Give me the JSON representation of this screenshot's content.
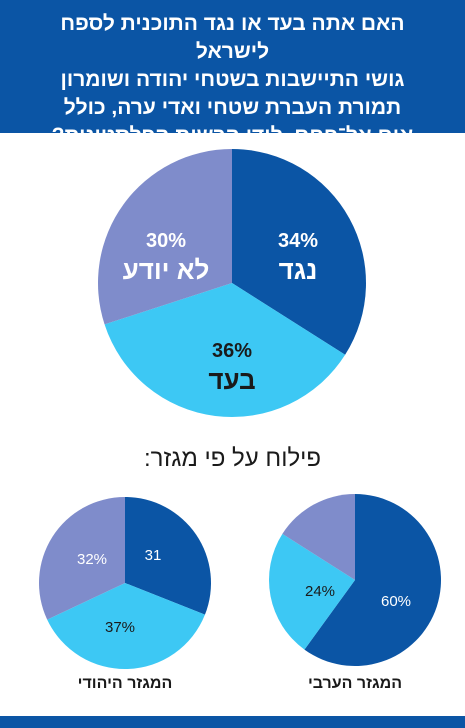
{
  "header": {
    "lines": [
      "האם אתה בעד או נגד התוכנית לספח לישראל",
      "גושי התיישבות בשטחי יהודה ושומרון",
      "תמורת העברת שטחי ואדי ערה, כולל",
      "אום אל־פחם, לידי הרשות הפלסטינית?"
    ]
  },
  "breakdown_title": "פילוח על פי מגזר:",
  "colors": {
    "header_bg": "#0b55a5",
    "dark_blue": "#0b55a5",
    "light_blue": "#3dc8f4",
    "lavender": "#7f8ccb",
    "grey_text": "#1a1a1a"
  },
  "chart_data": [
    {
      "type": "pie",
      "title": "",
      "slices": [
        {
          "label": "נגד",
          "value": 34,
          "value_text": "34%",
          "color": "#0b55a5"
        },
        {
          "label": "בעד",
          "value": 36,
          "value_text": "36%",
          "color": "#3dc8f4"
        },
        {
          "label": "לא יודע",
          "value": 30,
          "value_text": "30%",
          "color": "#7f8ccb"
        }
      ]
    },
    {
      "type": "pie",
      "title": "המגזר היהודי",
      "slices": [
        {
          "value": 31,
          "value_text": "31",
          "color": "#0b55a5"
        },
        {
          "value": 37,
          "value_text": "37%",
          "color": "#3dc8f4"
        },
        {
          "value": 32,
          "value_text": "32%",
          "color": "#7f8ccb"
        }
      ]
    },
    {
      "type": "pie",
      "title": "המגזר הערבי",
      "slices": [
        {
          "value": 60,
          "value_text": "60%",
          "color": "#0b55a5"
        },
        {
          "value": 24,
          "value_text": "24%",
          "color": "#3dc8f4"
        },
        {
          "value": 16,
          "value_text": "",
          "color": "#7f8ccb"
        }
      ]
    }
  ]
}
